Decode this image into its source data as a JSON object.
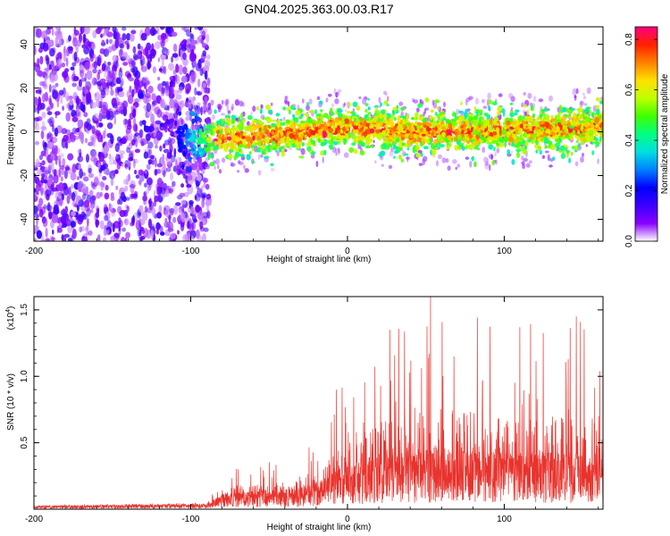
{
  "title": "GN04.2025.363.00.03.R17",
  "chart_data": [
    {
      "type": "heatmap",
      "xlabel": "Height of straight line (km)",
      "ylabel": "Frequency (Hz)",
      "xlim": [
        -200,
        163
      ],
      "ylim": [
        -50,
        48
      ],
      "xticks": [
        -200,
        -100,
        0,
        100
      ],
      "yticks": [
        -40,
        -20,
        0,
        20,
        40
      ],
      "colorbar": {
        "label": "Normalized spectral amplitude",
        "range": [
          0,
          0.85
        ],
        "ticks": [
          "0.0",
          "0.2",
          "0.4",
          "0.6",
          "0.8"
        ],
        "tick_values": [
          0,
          0.2,
          0.4,
          0.6,
          0.8
        ],
        "colors": [
          "#ffffff",
          "#8a00ff",
          "#3a00ff",
          "#0000ff",
          "#0080ff",
          "#00e0e0",
          "#00ff80",
          "#40ff00",
          "#c0ff00",
          "#ffe000",
          "#ff8000",
          "#ff2000",
          "#ff0080"
        ]
      },
      "regions": [
        {
          "x_range": [
            -200,
            -88
          ],
          "freq_range": [
            -50,
            48
          ],
          "level": "low, broadband noise"
        },
        {
          "x_range": [
            -110,
            163
          ],
          "freq_center": 0,
          "freq_width": 8,
          "level": "signal band"
        }
      ],
      "band_trend": [
        {
          "x": -80,
          "freq": -3
        },
        {
          "x": -60,
          "freq": -2
        },
        {
          "x": -40,
          "freq": -1
        },
        {
          "x": -20,
          "freq": 1
        },
        {
          "x": 0,
          "freq": 2
        },
        {
          "x": 40,
          "freq": 0
        },
        {
          "x": 80,
          "freq": 0
        },
        {
          "x": 120,
          "freq": 1
        },
        {
          "x": 160,
          "freq": 2
        }
      ],
      "peak_amplitude": 0.82
    },
    {
      "type": "line",
      "xlabel": "Height of straight line (km)",
      "ylabel": "SNR (10 * v/v)",
      "scale_label": "(x10",
      "scale_exp": "4",
      "scale_close": ")",
      "xlim": [
        -200,
        163
      ],
      "ylim": [
        0,
        1.6
      ],
      "xticks": [
        -200,
        -100,
        0,
        100
      ],
      "yticks": [
        "0.5",
        "1.0",
        "1.5"
      ],
      "ytick_values": [
        0.5,
        1.0,
        1.5
      ],
      "color": "#e8332d",
      "series_profile": [
        {
          "x": -200,
          "base": 0.02,
          "peak": 0.03
        },
        {
          "x": -90,
          "base": 0.03,
          "peak": 0.05
        },
        {
          "x": -80,
          "base": 0.08,
          "peak": 0.28
        },
        {
          "x": -40,
          "base": 0.12,
          "peak": 0.38
        },
        {
          "x": -20,
          "base": 0.14,
          "peak": 0.55
        },
        {
          "x": -5,
          "base": 0.22,
          "peak": 0.9
        },
        {
          "x": 20,
          "base": 0.3,
          "peak": 1.25
        },
        {
          "x": 50,
          "base": 0.32,
          "peak": 1.6
        },
        {
          "x": 100,
          "base": 0.32,
          "peak": 1.4
        },
        {
          "x": 163,
          "base": 0.3,
          "peak": 1.45
        }
      ],
      "notable_peaks": [
        {
          "x": -7,
          "value": 0.9
        },
        {
          "x": 27,
          "value": 1.35
        },
        {
          "x": 53,
          "value": 1.6
        },
        {
          "x": 110,
          "value": 1.37
        },
        {
          "x": 146,
          "value": 1.45
        }
      ]
    }
  ]
}
